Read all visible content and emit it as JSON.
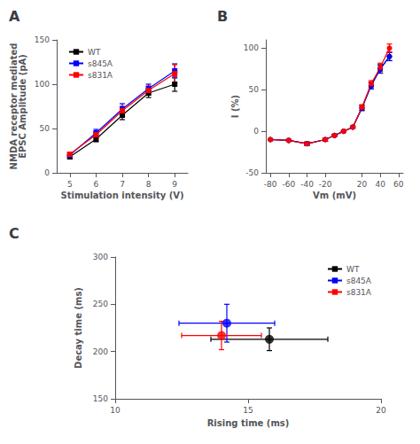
{
  "chart_data": [
    {
      "title": "A",
      "type": "line",
      "marker": "square",
      "xlabel": "Stimulation intensity (V)",
      "ylabel": "NMDA receptor mediated\nEPSC Amplitude (pA)",
      "x": [
        5,
        6,
        7,
        8,
        9
      ],
      "xlim": [
        4.5,
        9.5
      ],
      "xticks": [
        5,
        6,
        7,
        8,
        9
      ],
      "ylim": [
        0,
        150
      ],
      "yticks": [
        0,
        50,
        100,
        150
      ],
      "grid": false,
      "legend": "upper left",
      "series": [
        {
          "name": "WT",
          "color": "#000000",
          "values": [
            18,
            38,
            65,
            90,
            100
          ],
          "errors": [
            2,
            3,
            5,
            5,
            8
          ]
        },
        {
          "name": "s845A",
          "color": "#0000FF",
          "values": [
            20,
            45,
            72,
            95,
            115
          ],
          "errors": [
            2,
            4,
            6,
            5,
            8
          ]
        },
        {
          "name": "s831A",
          "color": "#FF0000",
          "values": [
            21,
            43,
            70,
            93,
            112
          ],
          "errors": [
            2,
            3,
            5,
            5,
            10
          ]
        }
      ]
    },
    {
      "title": "B",
      "type": "line",
      "marker": "circle",
      "xlabel": "Vm (mV)",
      "ylabel": "I (%)",
      "x": [
        -80,
        -60,
        -40,
        -20,
        -10,
        0,
        10,
        20,
        30,
        40,
        50
      ],
      "xlim": [
        -85,
        65
      ],
      "xticks": [
        -80,
        -60,
        -40,
        -20,
        20,
        40,
        60
      ],
      "ylim": [
        -50,
        110
      ],
      "yticks": [
        -50,
        0,
        50,
        100
      ],
      "grid": false,
      "series": [
        {
          "color": "#000000",
          "values": [
            -10,
            -11,
            -15,
            -10,
            -5,
            0,
            5,
            28,
            55,
            75,
            90
          ],
          "errors": [
            1,
            1,
            2,
            2,
            1,
            0,
            1,
            3,
            4,
            5,
            5
          ]
        },
        {
          "color": "#0000FF",
          "values": [
            -10,
            -11,
            -15,
            -10,
            -5,
            0,
            5,
            28,
            55,
            75,
            90
          ],
          "errors": [
            1,
            1,
            2,
            2,
            1,
            0,
            1,
            3,
            4,
            5,
            5
          ]
        },
        {
          "color": "#FF0000",
          "values": [
            -10,
            -11,
            -15,
            -10,
            -5,
            0,
            5,
            29,
            57,
            77,
            100
          ],
          "errors": [
            1,
            1,
            2,
            2,
            1,
            0,
            1,
            3,
            4,
            5,
            5
          ]
        }
      ]
    },
    {
      "title": "C",
      "type": "scatter",
      "marker": "circle",
      "xlabel": "Rising time (ms)",
      "ylabel": "Decay time (ms)",
      "xlim": [
        10,
        20
      ],
      "xticks": [
        10,
        15,
        20
      ],
      "ylim": [
        150,
        300
      ],
      "yticks": [
        150,
        200,
        250,
        300
      ],
      "grid": false,
      "legend": "upper right",
      "series": [
        {
          "name": "WT",
          "color": "#000000",
          "x": [
            15.8
          ],
          "values": [
            213
          ],
          "x_errors": [
            2.2
          ],
          "errors": [
            12
          ]
        },
        {
          "name": "s845A",
          "color": "#0000FF",
          "x": [
            14.2
          ],
          "values": [
            230
          ],
          "x_errors": [
            1.8
          ],
          "errors": [
            20
          ]
        },
        {
          "name": "s831A",
          "color": "#FF0000",
          "x": [
            14.0
          ],
          "values": [
            217
          ],
          "x_errors": [
            1.5
          ],
          "errors": [
            15
          ]
        }
      ]
    }
  ]
}
